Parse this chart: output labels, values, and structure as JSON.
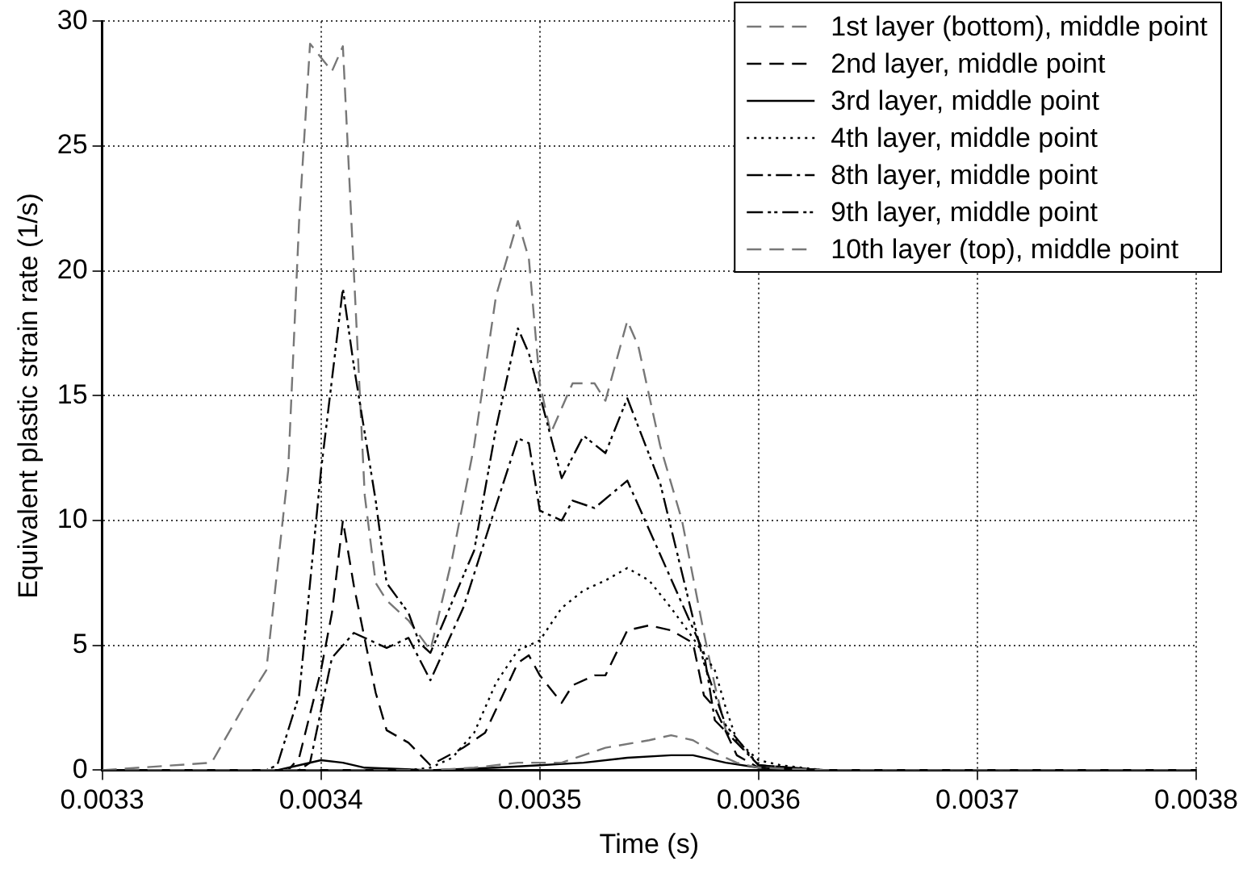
{
  "chart_data": {
    "type": "line",
    "xlabel": "Time (s)",
    "ylabel": "Equivalent plastic strain rate (1/s)",
    "xlim": [
      0.0033,
      0.0038
    ],
    "xticks": [
      0.0033,
      0.0034,
      0.0035,
      0.0036,
      0.0037,
      0.0038
    ],
    "ylim": [
      0,
      30
    ],
    "yticks": [
      0,
      5,
      10,
      15,
      20,
      25,
      30
    ],
    "grid": true,
    "legend": "top right",
    "marker": "none",
    "series": [
      {
        "name": "1st layer (bottom), middle point",
        "color": "#777777",
        "line_style": "dashed",
        "x": [
          0.0033,
          0.00345,
          0.00347,
          0.00349,
          0.00351,
          0.00353,
          0.00355,
          0.00356,
          0.00357,
          0.00358,
          0.00359,
          0.0036,
          0.00363,
          0.0038
        ],
        "values": [
          0,
          0,
          0.1,
          0.3,
          0.3,
          0.9,
          1.2,
          1.4,
          1.2,
          0.7,
          0.3,
          0.1,
          0,
          0
        ]
      },
      {
        "name": "2nd layer, middle point",
        "color": "#000000",
        "line_style": "dashed",
        "x": [
          0.0033,
          0.003385,
          0.00339,
          0.0034,
          0.003405,
          0.00341,
          0.003415,
          0.003425,
          0.00343,
          0.00344,
          0.00345,
          0.003465,
          0.003475,
          0.00349,
          0.003495,
          0.0035,
          0.00351,
          0.003515,
          0.003525,
          0.00353,
          0.00354,
          0.00355,
          0.00356,
          0.00357,
          0.003575,
          0.00358,
          0.00359,
          0.0036,
          0.00363,
          0.0038
        ],
        "values": [
          0,
          0,
          0.5,
          4,
          6.3,
          10,
          7.4,
          3.1,
          1.6,
          1.1,
          0.2,
          0.9,
          1.5,
          4.3,
          4.6,
          3.8,
          2.7,
          3.4,
          3.8,
          3.8,
          5.6,
          5.8,
          5.6,
          5.1,
          3,
          2.5,
          0.6,
          0.1,
          0,
          0
        ]
      },
      {
        "name": "3rd layer, middle point",
        "color": "#000000",
        "line_style": "solid",
        "x": [
          0.0033,
          0.00338,
          0.00339,
          0.0034,
          0.00341,
          0.00342,
          0.00345,
          0.00348,
          0.0035,
          0.00352,
          0.00354,
          0.00356,
          0.00357,
          0.003585,
          0.0036,
          0.00363,
          0.0038
        ],
        "values": [
          0,
          0,
          0.2,
          0.4,
          0.3,
          0.1,
          0,
          0.1,
          0.2,
          0.3,
          0.5,
          0.6,
          0.6,
          0.3,
          0.1,
          0,
          0
        ]
      },
      {
        "name": "4th layer, middle point",
        "color": "#000000",
        "line_style": "dotted",
        "x": [
          0.0033,
          0.00344,
          0.00345,
          0.00346,
          0.00347,
          0.00348,
          0.00349,
          0.0035,
          0.00351,
          0.00352,
          0.00353,
          0.00354,
          0.00355,
          0.00356,
          0.00357,
          0.00358,
          0.003585,
          0.00359,
          0.0036,
          0.00361,
          0.00363,
          0.0038
        ],
        "values": [
          0,
          0,
          0.1,
          0.5,
          1.5,
          3.5,
          4.8,
          5.2,
          6.5,
          7.2,
          7.6,
          8.1,
          7.6,
          6.5,
          5.3,
          4,
          2.5,
          1.2,
          0.4,
          0.2,
          0,
          0
        ]
      },
      {
        "name": "8th layer, middle point",
        "color": "#000000",
        "line_style": "dashdot",
        "x": [
          0.0033,
          0.00339,
          0.003395,
          0.003405,
          0.003415,
          0.00343,
          0.00344,
          0.00345,
          0.003465,
          0.00348,
          0.00349,
          0.003495,
          0.0035,
          0.00351,
          0.003515,
          0.003525,
          0.00354,
          0.003575,
          0.00358,
          0.0036,
          0.00363,
          0.0038
        ],
        "values": [
          0,
          0,
          0.3,
          4.5,
          5.5,
          4.9,
          5.3,
          3.6,
          6.5,
          10.6,
          13.3,
          13.1,
          10.4,
          10,
          10.8,
          10.5,
          11.6,
          4.7,
          2,
          0.2,
          0,
          0
        ]
      },
      {
        "name": "9th layer, middle point",
        "color": "#000000",
        "line_style": "dashdotdot",
        "x": [
          0.0033,
          0.003375,
          0.00338,
          0.00339,
          0.0034,
          0.00341,
          0.003415,
          0.003425,
          0.00343,
          0.00344,
          0.003445,
          0.00345,
          0.00347,
          0.00348,
          0.00349,
          0.003495,
          0.00351,
          0.00352,
          0.00353,
          0.00354,
          0.003555,
          0.003565,
          0.003575,
          0.003585,
          0.0036,
          0.00363,
          0.0038
        ],
        "values": [
          0,
          0,
          0.2,
          3,
          12,
          19.3,
          16.2,
          10.8,
          7.5,
          6.3,
          5.1,
          4.7,
          8.8,
          13.7,
          17.7,
          16.7,
          11.7,
          13.4,
          12.7,
          14.9,
          11.5,
          7.9,
          4.3,
          1.8,
          0.2,
          0,
          0
        ]
      },
      {
        "name": "10th layer (top), middle point",
        "color": "#777777",
        "line_style": "dashed",
        "x": [
          0.0033,
          0.00335,
          0.003365,
          0.003375,
          0.003385,
          0.00339,
          0.003395,
          0.003405,
          0.00341,
          0.003415,
          0.00342,
          0.003425,
          0.00343,
          0.00344,
          0.00345,
          0.00346,
          0.00347,
          0.00348,
          0.00349,
          0.003495,
          0.0035,
          0.003505,
          0.003515,
          0.003525,
          0.00353,
          0.00354,
          0.003545,
          0.003555,
          0.003565,
          0.003575,
          0.00358,
          0.003585,
          0.0036,
          0.00363,
          0.0038
        ],
        "values": [
          0,
          0.3,
          2.6,
          4,
          12,
          22,
          29.1,
          28,
          29,
          20,
          11,
          7.5,
          6.8,
          6,
          4.8,
          8.5,
          13,
          19,
          22,
          20.5,
          15.5,
          13.5,
          15.5,
          15.5,
          14.8,
          18,
          17,
          13,
          10,
          5.5,
          3.4,
          1.6,
          0.2,
          0,
          0
        ]
      }
    ]
  }
}
